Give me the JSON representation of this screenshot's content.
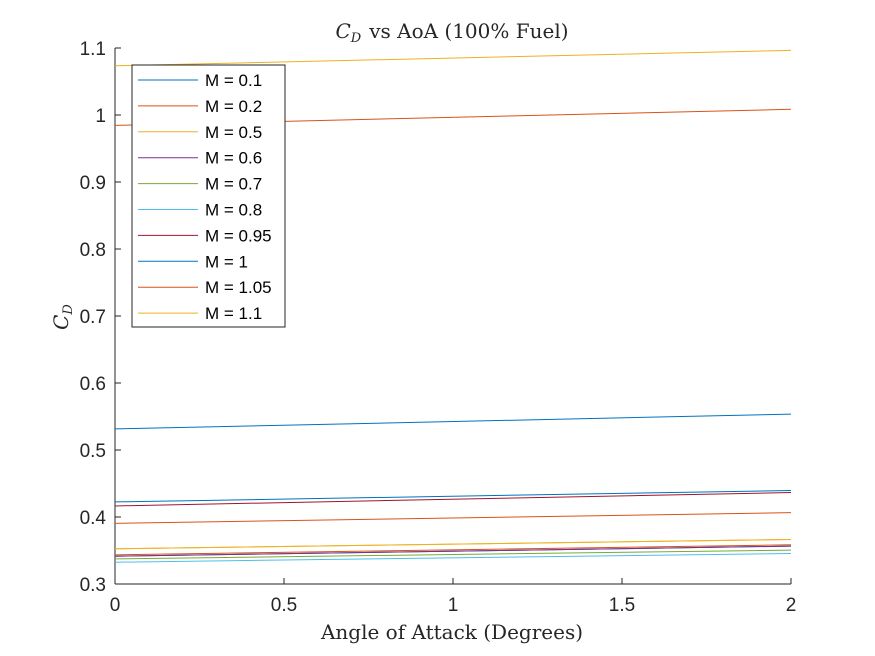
{
  "chart_data": {
    "type": "line",
    "title": "vs AoA (100% Fuel)",
    "title_symbol": "C",
    "title_subscript": "D",
    "xlabel": "Angle of Attack (Degrees)",
    "ylabel_symbol": "C",
    "ylabel_subscript": "D",
    "xlim": [
      0,
      2
    ],
    "ylim": [
      0.3,
      1.1
    ],
    "xticks": [
      0,
      0.5,
      1,
      1.5,
      2
    ],
    "xtick_labels": [
      "0",
      "0.5",
      "1",
      "1.5",
      "2"
    ],
    "yticks": [
      0.3,
      0.4,
      0.5,
      0.6,
      0.7,
      0.8,
      0.9,
      1.0,
      1.1
    ],
    "ytick_labels": [
      "0.3",
      "0.4",
      "0.5",
      "0.6",
      "0.7",
      "0.8",
      "0.9",
      "1",
      "1.1"
    ],
    "grid": false,
    "legend_position": "top-left",
    "x": [
      0,
      2
    ],
    "series": [
      {
        "name": "M = 0.1",
        "color": "#0072BD",
        "values": [
          0.3415,
          0.3565
        ]
      },
      {
        "name": "M = 0.2",
        "color": "#D95319",
        "values": [
          0.3435,
          0.3585
        ]
      },
      {
        "name": "M = 0.5",
        "color": "#EDB120",
        "values": [
          0.3525,
          0.3665
        ]
      },
      {
        "name": "M = 0.6",
        "color": "#7E2F8E",
        "values": [
          0.3415,
          0.3565
        ]
      },
      {
        "name": "M = 0.7",
        "color": "#77AC30",
        "values": [
          0.3375,
          0.3505
        ]
      },
      {
        "name": "M = 0.8",
        "color": "#4DBEEE",
        "values": [
          0.3325,
          0.3455
        ]
      },
      {
        "name": "M = 0.95",
        "color": "#A2142F",
        "values": [
          0.4165,
          0.4365
        ]
      },
      {
        "name": "M = 1",
        "color": "#0072BD",
        "values": [
          0.4225,
          0.4395
        ]
      },
      {
        "name": "M = 1.05",
        "color": "#D95319",
        "values": [
          0.3905,
          0.4065
        ]
      },
      {
        "name": "M = 1.1",
        "color": "#EDB120",
        "values": [
          0.3525,
          0.3665
        ]
      },
      {
        "name": "",
        "color": "#0072BD",
        "values": [
          0.5315,
          0.5535
        ]
      },
      {
        "name": "",
        "color": "#D95319",
        "values": [
          0.9845,
          1.0085
        ]
      },
      {
        "name": "",
        "color": "#EDB120",
        "values": [
          1.0735,
          1.0965
        ]
      }
    ]
  }
}
